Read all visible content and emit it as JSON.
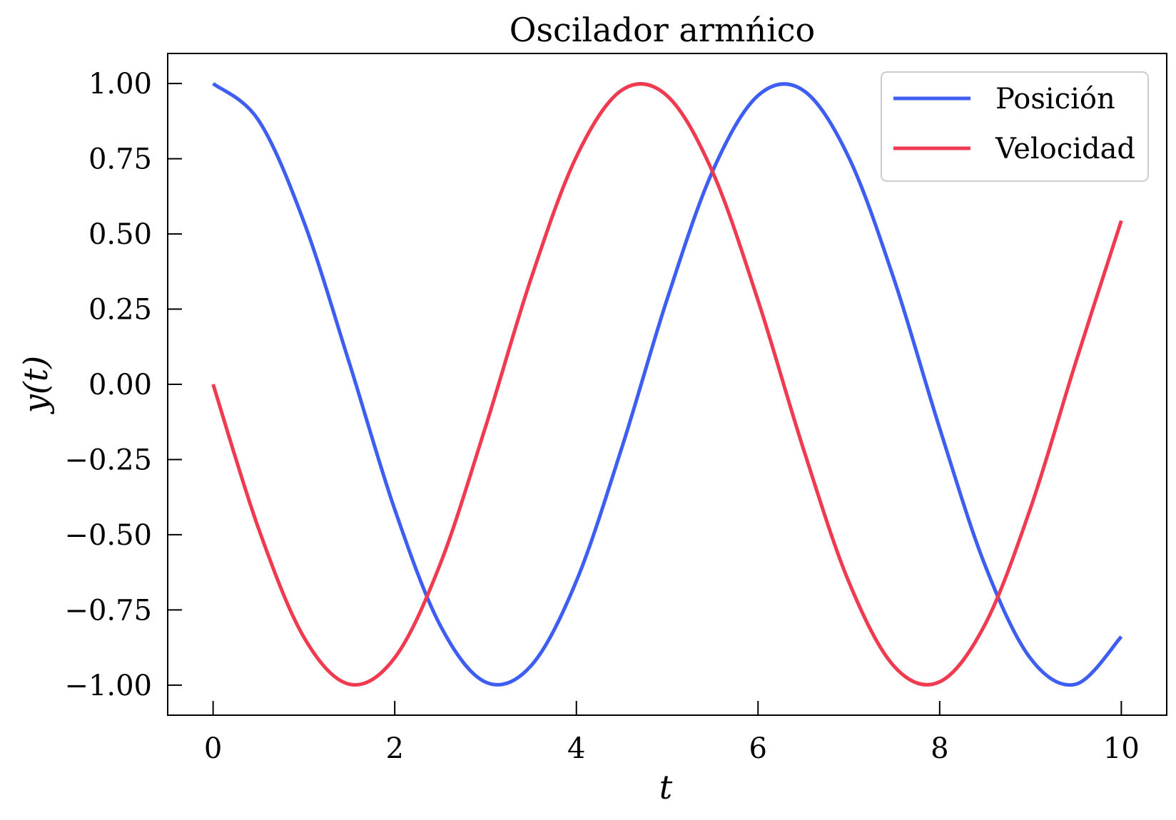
{
  "chart_data": {
    "type": "line",
    "title": "Oscilador armńico",
    "xlabel": "t",
    "ylabel": "y(t)",
    "xlim": [
      -0.5,
      10.5
    ],
    "ylim": [
      -1.1,
      1.1
    ],
    "xticks": [
      0,
      2,
      4,
      6,
      8,
      10
    ],
    "xtick_labels": [
      "0",
      "2",
      "4",
      "6",
      "8",
      "10"
    ],
    "yticks": [
      1.0,
      0.75,
      0.5,
      0.25,
      0.0,
      -0.25,
      -0.5,
      -0.75,
      -1.0
    ],
    "ytick_labels": [
      "1.00",
      "0.75",
      "0.50",
      "0.25",
      "0.00",
      "−0.25",
      "−0.50",
      "−0.75",
      "−1.00"
    ],
    "grid": false,
    "legend_position": "top-right",
    "x": [
      0,
      0.5,
      1,
      1.5,
      2,
      2.5,
      3,
      3.5,
      4,
      4.5,
      5,
      5.5,
      6,
      6.5,
      7,
      7.5,
      8,
      8.5,
      9,
      9.5,
      10
    ],
    "series": [
      {
        "name": "Posición",
        "color": "#3d5ef0",
        "values": [
          1.0,
          0.878,
          0.54,
          0.071,
          -0.416,
          -0.801,
          -0.99,
          -0.936,
          -0.654,
          -0.211,
          0.284,
          0.709,
          0.96,
          0.977,
          0.754,
          0.347,
          -0.146,
          -0.602,
          -0.911,
          -0.997,
          -0.839
        ]
      },
      {
        "name": "Velocidad",
        "color": "#ef3b4f",
        "values": [
          0.0,
          -0.479,
          -0.841,
          -0.997,
          -0.909,
          -0.598,
          -0.141,
          0.351,
          0.757,
          0.978,
          0.959,
          0.706,
          0.279,
          -0.215,
          -0.657,
          -0.938,
          -0.989,
          -0.798,
          -0.412,
          0.075,
          0.544
        ]
      }
    ]
  }
}
